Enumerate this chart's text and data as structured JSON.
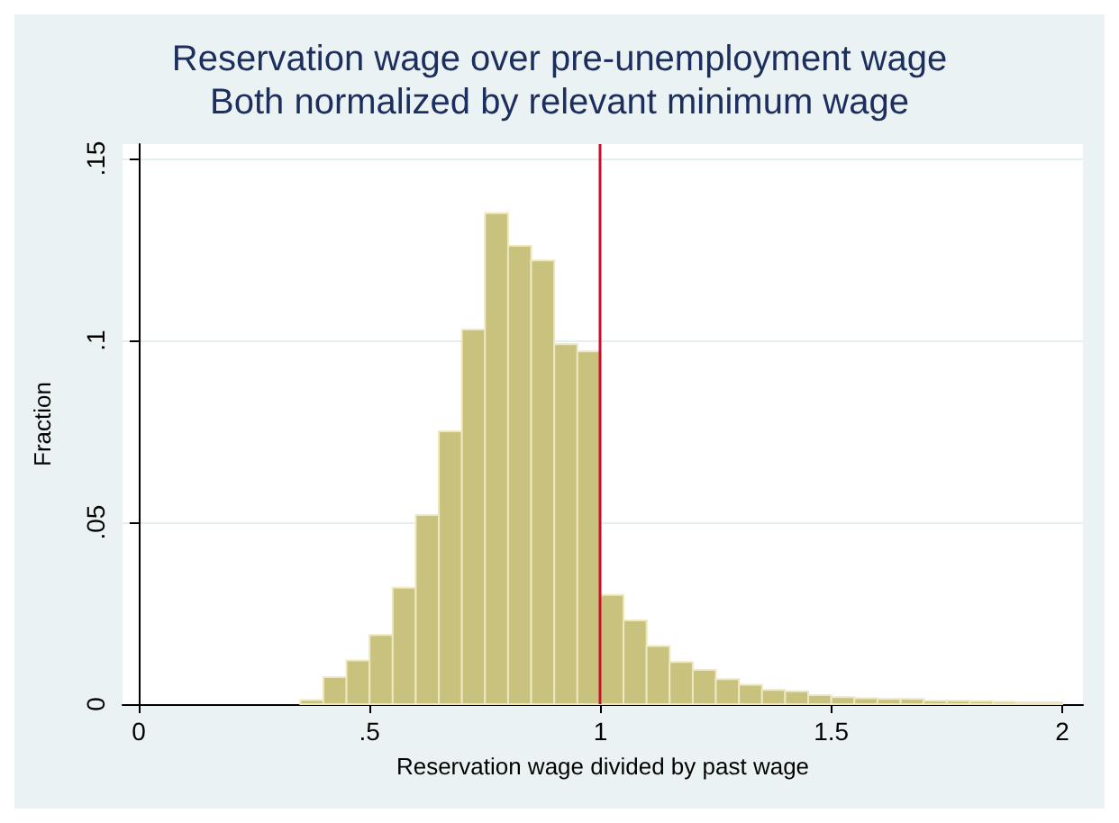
{
  "chart_data": {
    "type": "histogram",
    "title": "Reservation wage over pre-unemployment wage\nBoth normalized by relevant minimum wage",
    "xlabel": "Reservation wage divided by past wage",
    "ylabel": "Fraction",
    "color": "#c9c27f",
    "bins": [
      0.35,
      0.4,
      0.45,
      0.5,
      0.55,
      0.6,
      0.65,
      0.7,
      0.75,
      0.8,
      0.85,
      0.9,
      0.95,
      1.0,
      1.05,
      1.1,
      1.15,
      1.2,
      1.25,
      1.3,
      1.35,
      1.4,
      1.45,
      1.5,
      1.55,
      1.6,
      1.65,
      1.7,
      1.75,
      1.8,
      1.85,
      1.9,
      1.95,
      2.0
    ],
    "values": [
      0.0011,
      0.0074,
      0.012,
      0.019,
      0.032,
      0.052,
      0.075,
      0.103,
      0.135,
      0.126,
      0.122,
      0.099,
      0.097,
      0.03,
      0.023,
      0.016,
      0.0116,
      0.0094,
      0.0069,
      0.0053,
      0.0039,
      0.0035,
      0.0025,
      0.0019,
      0.0016,
      0.0014,
      0.0014,
      0.0009,
      0.0009,
      0.0008,
      0.0006,
      0.0005,
      0.0005
    ],
    "xlim": [
      -0.035,
      2.045
    ],
    "ylim": [
      0,
      0.154
    ],
    "xticks": [
      0,
      {
        "value": 0.5,
        "label": ".5"
      },
      1,
      1.5,
      2
    ],
    "yticks": [
      0,
      {
        "value": 0.05,
        "label": ".05"
      },
      {
        "value": 0.1,
        "label": ".1"
      },
      {
        "value": 0.15,
        "label": ".15"
      }
    ],
    "grid": "y",
    "ref_lines": [
      {
        "axis": "x",
        "value": 1,
        "color": "#c8102e"
      }
    ]
  }
}
